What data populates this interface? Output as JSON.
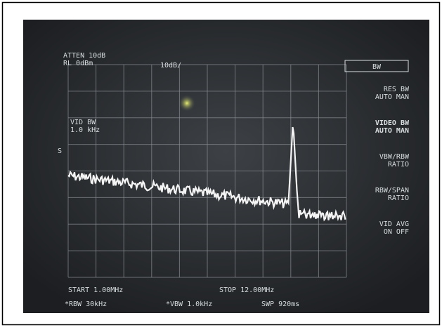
{
  "screen": {
    "header": {
      "atten": "ATTEN 10dB",
      "ref_level": "RL 0dBm",
      "scale": "10dB/"
    },
    "marker_info": {
      "label": "VID BW",
      "value": "1.0 kHz"
    },
    "side_mark": "S",
    "footer": {
      "start": "START 1.00MHz",
      "stop": "STOP 12.00MHz",
      "rbw": "*RBW 30kHz",
      "vbw": "*VBW 1.0kHz",
      "sweep": "SWP 920ms"
    },
    "menu": [
      {
        "lines": [
          "BW"
        ]
      },
      {
        "lines": [
          "RES BW",
          "AUTO MAN"
        ]
      },
      {
        "lines": [
          "VIDEO BW",
          "AUTO MAN"
        ]
      },
      {
        "lines": [
          "VBW/RBW",
          "RATIO"
        ]
      },
      {
        "lines": [
          "RBW/SPAN",
          "RATIO"
        ]
      },
      {
        "lines": [
          "VID AVG",
          "ON OFF"
        ]
      }
    ]
  }
}
